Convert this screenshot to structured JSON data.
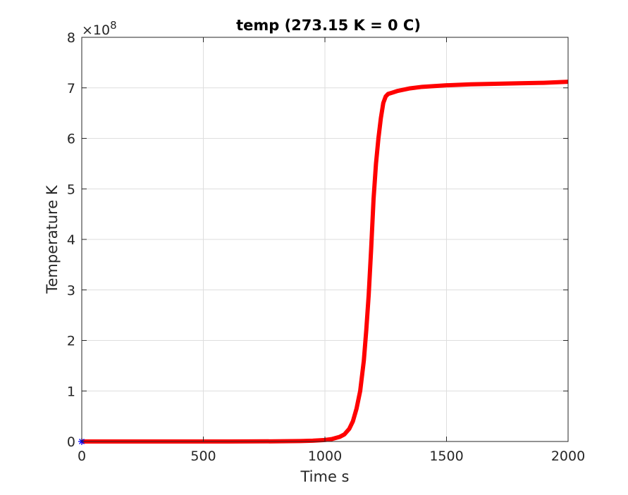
{
  "chart_data": {
    "type": "line",
    "title": "temp (273.15 K = 0 C)",
    "xlabel": "Time s",
    "ylabel": "Temperature K",
    "xlim": [
      0,
      2000
    ],
    "ylim": [
      0,
      8
    ],
    "y_multiplier_label": "×10",
    "y_multiplier_exponent": "8",
    "xticks": [
      0,
      500,
      1000,
      1500,
      2000
    ],
    "xtick_labels": [
      "0",
      "500",
      "1000",
      "1500",
      "2000"
    ],
    "yticks": [
      0,
      1,
      2,
      3,
      4,
      5,
      6,
      7,
      8
    ],
    "ytick_labels": [
      "0",
      "1",
      "2",
      "3",
      "4",
      "5",
      "6",
      "7",
      "8"
    ],
    "grid": true,
    "box": true,
    "series": [
      {
        "color": "#ff0000",
        "x": [
          0,
          200,
          400,
          600,
          800,
          900,
          950,
          1000,
          1030,
          1060,
          1080,
          1100,
          1115,
          1130,
          1145,
          1160,
          1170,
          1180,
          1190,
          1200,
          1210,
          1220,
          1230,
          1240,
          1250,
          1260,
          1280,
          1300,
          1350,
          1400,
          1500,
          1600,
          1700,
          1800,
          1900,
          2000
        ],
        "y": [
          0,
          0,
          0,
          0,
          0.003,
          0.008,
          0.015,
          0.03,
          0.05,
          0.09,
          0.14,
          0.25,
          0.4,
          0.65,
          1.0,
          1.6,
          2.2,
          2.9,
          3.8,
          4.8,
          5.5,
          6.0,
          6.4,
          6.7,
          6.83,
          6.88,
          6.91,
          6.94,
          6.99,
          7.02,
          7.05,
          7.07,
          7.08,
          7.09,
          7.1,
          7.12
        ]
      }
    ],
    "start_marker": {
      "x": 0,
      "y": 0,
      "symbol": "*",
      "color": "#0000ff"
    }
  }
}
